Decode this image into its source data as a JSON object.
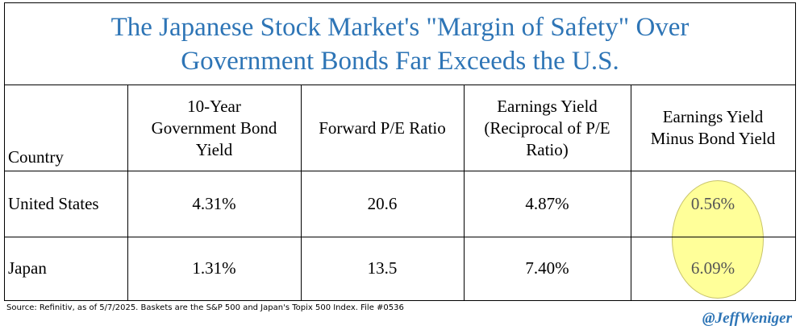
{
  "chart_data": {
    "type": "table",
    "title_lines": [
      "The Japanese Stock Market's \"Margin of Safety\" Over",
      "Government Bonds Far Exceeds the U.S."
    ],
    "columns": [
      "Country",
      "10-Year Government Bond Yield",
      "Forward P/E Ratio",
      "Earnings Yield (Reciprocal of P/E Ratio)",
      "Earnings Yield Minus Bond Yield"
    ],
    "header_lines": [
      [
        "Country"
      ],
      [
        "10-Year",
        "Government Bond",
        "Yield"
      ],
      [
        "Forward P/E Ratio"
      ],
      [
        "Earnings Yield",
        "(Reciprocal of P/E",
        "Ratio)"
      ],
      [
        "Earnings Yield",
        "Minus Bond Yield"
      ]
    ],
    "rows": [
      [
        "United States",
        "4.31%",
        "20.6",
        "4.87%",
        "0.56%"
      ],
      [
        "Japan",
        "1.31%",
        "13.5",
        "7.40%",
        "6.09%"
      ]
    ],
    "highlighted_column": "Earnings Yield Minus Bond Yield",
    "highlight_color": "#ffff99",
    "source": "Source: Refinitiv, as of 5/7/2025. Baskets are the S&P 500 and Japan's Topix 500 Index. File #0536",
    "handle": "@JeffWeniger",
    "accent_color": "#2e75b6"
  }
}
